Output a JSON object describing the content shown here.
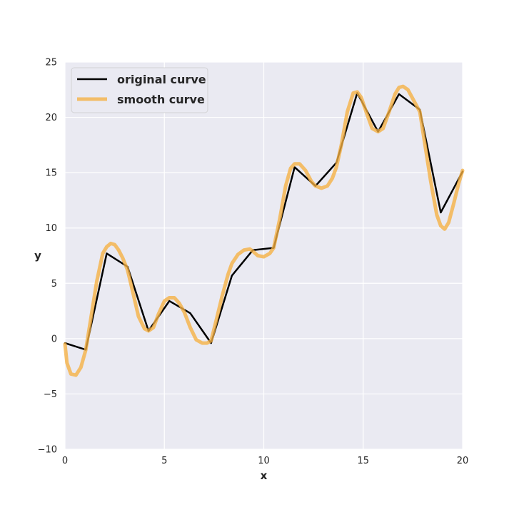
{
  "chart_data": {
    "type": "line",
    "title": "",
    "xlabel": "x",
    "ylabel": "y",
    "xlim": [
      0,
      20
    ],
    "ylim": [
      -10,
      25
    ],
    "xticks": [
      0,
      5,
      10,
      15,
      20
    ],
    "yticks": [
      -10,
      -5,
      0,
      5,
      10,
      15,
      20,
      25
    ],
    "xtick_labels": [
      "0",
      "5",
      "10",
      "15",
      "20"
    ],
    "ytick_labels": [
      "−10",
      "−5",
      "0",
      "5",
      "10",
      "15",
      "20",
      "25"
    ],
    "grid": true,
    "legend": "top-left",
    "background": "#eaeaf2",
    "series": [
      {
        "name": "original curve",
        "color": "#000000",
        "x": [
          0,
          1.05,
          2.1,
          3.15,
          4.2,
          5.25,
          6.3,
          7.35,
          8.4,
          9.45,
          10.5,
          11.55,
          12.6,
          13.65,
          14.7,
          15.75,
          16.8,
          17.85,
          18.9,
          20
        ],
        "y": [
          -0.4,
          -1.0,
          7.7,
          6.5,
          0.7,
          3.4,
          2.3,
          -0.4,
          5.7,
          8.0,
          8.2,
          15.5,
          13.8,
          15.9,
          22.2,
          18.7,
          22.1,
          20.7,
          11.4,
          15.1
        ]
      },
      {
        "name": "smooth curve",
        "color": "#f5b041",
        "x": [
          0,
          0.1,
          0.3,
          0.55,
          0.8,
          1.05,
          1.3,
          1.6,
          1.9,
          2.1,
          2.3,
          2.5,
          2.7,
          2.9,
          3.15,
          3.4,
          3.7,
          4.0,
          4.2,
          4.45,
          4.7,
          5.0,
          5.25,
          5.5,
          5.75,
          6.0,
          6.3,
          6.6,
          6.9,
          7.15,
          7.35,
          7.6,
          7.9,
          8.2,
          8.4,
          8.7,
          9.0,
          9.3,
          9.45,
          9.7,
          10.0,
          10.3,
          10.5,
          10.8,
          11.1,
          11.35,
          11.55,
          11.8,
          12.1,
          12.4,
          12.6,
          12.9,
          13.2,
          13.45,
          13.65,
          13.9,
          14.2,
          14.5,
          14.7,
          14.9,
          15.15,
          15.45,
          15.75,
          16.0,
          16.3,
          16.6,
          16.8,
          17.0,
          17.25,
          17.55,
          17.85,
          18.1,
          18.4,
          18.7,
          18.9,
          19.1,
          19.3,
          19.55,
          19.8,
          20.0
        ],
        "y": [
          -0.5,
          -2.2,
          -3.2,
          -3.3,
          -2.6,
          -1.0,
          1.8,
          5.2,
          7.7,
          8.3,
          8.6,
          8.5,
          8.0,
          7.3,
          6.2,
          4.3,
          2.0,
          0.9,
          0.7,
          1.0,
          2.2,
          3.4,
          3.7,
          3.7,
          3.2,
          2.4,
          1.0,
          -0.1,
          -0.4,
          -0.4,
          -0.2,
          1.6,
          3.8,
          5.8,
          6.8,
          7.6,
          8.0,
          8.1,
          7.9,
          7.5,
          7.4,
          7.7,
          8.2,
          10.8,
          13.8,
          15.4,
          15.8,
          15.8,
          15.2,
          14.2,
          13.8,
          13.6,
          13.8,
          14.5,
          15.5,
          17.5,
          20.5,
          22.2,
          22.3,
          21.8,
          20.5,
          19.0,
          18.7,
          19.0,
          20.5,
          22.1,
          22.7,
          22.8,
          22.5,
          21.5,
          20.5,
          17.6,
          14.2,
          11.2,
          10.2,
          9.9,
          10.5,
          12.2,
          14.0,
          15.2
        ]
      }
    ]
  }
}
